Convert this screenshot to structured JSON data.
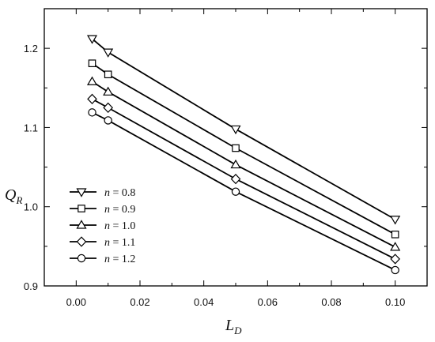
{
  "chart_data": {
    "type": "line",
    "x": [
      0.005,
      0.01,
      0.05,
      0.1
    ],
    "series": [
      {
        "name": "n = 0.8",
        "marker": "triangle-down",
        "values": [
          1.212,
          1.195,
          1.098,
          0.984
        ]
      },
      {
        "name": "n = 0.9",
        "marker": "square",
        "values": [
          1.181,
          1.167,
          1.074,
          0.965
        ]
      },
      {
        "name": "n = 1.0",
        "marker": "triangle-up",
        "values": [
          1.158,
          1.145,
          1.053,
          0.949
        ]
      },
      {
        "name": "n = 1.1",
        "marker": "diamond",
        "values": [
          1.136,
          1.125,
          1.035,
          0.934
        ]
      },
      {
        "name": "n = 1.2",
        "marker": "circle",
        "values": [
          1.119,
          1.109,
          1.019,
          0.92
        ]
      }
    ],
    "xlabel": {
      "main": "L",
      "sub": "D"
    },
    "ylabel": {
      "main": "Q",
      "sub": "R"
    },
    "xlim": [
      -0.01,
      0.11
    ],
    "ylim": [
      0.9,
      1.25
    ],
    "xticks": [
      "0.00",
      "0.02",
      "0.04",
      "0.06",
      "0.08",
      "0.10"
    ],
    "yticks": [
      "0.9",
      "1.0",
      "1.1",
      "1.2"
    ],
    "legend": {
      "placement": "lower-left",
      "entries": [
        {
          "var": "n",
          "rest": " = 0.8"
        },
        {
          "var": "n",
          "rest": " = 0.9"
        },
        {
          "var": "n",
          "rest": " = 1.0"
        },
        {
          "var": "n",
          "rest": " = 1.1"
        },
        {
          "var": "n",
          "rest": " = 1.2"
        }
      ]
    },
    "grid": false,
    "line_color": "#000000"
  }
}
